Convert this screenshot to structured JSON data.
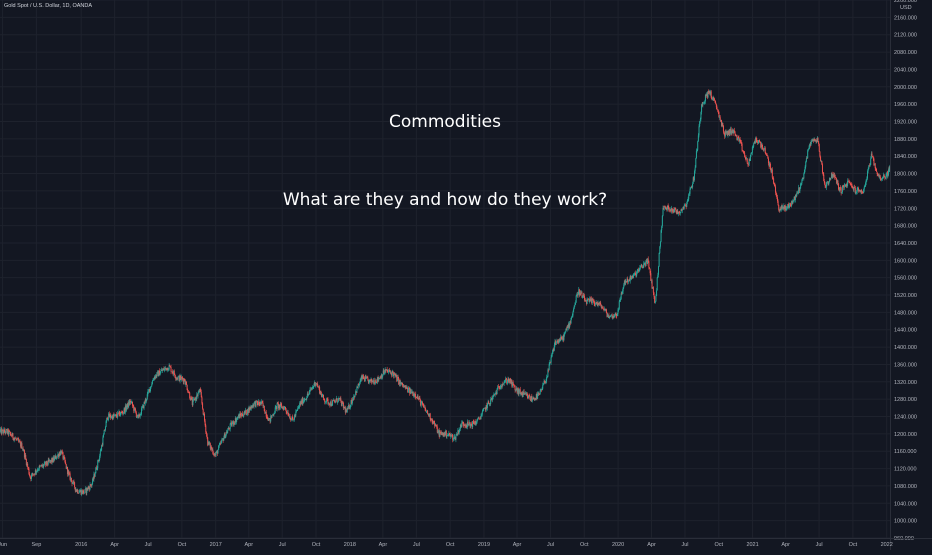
{
  "symbol_label": "Gold Spot / U.S. Dollar, 1D, OANDA",
  "overlay": {
    "title": "Commodities",
    "subtitle": "What are they and how do they work?"
  },
  "colors": {
    "background": "#131722",
    "grid": "#1e222d",
    "up": "#26a69a",
    "down": "#ef5350",
    "axis_text": "#b2b5be"
  },
  "chart_data": {
    "type": "candlestick",
    "title": "",
    "currency": "USD",
    "xlabel": "",
    "ylabel": "",
    "ylim": [
      960,
      2200
    ],
    "grid": true,
    "y_ticks": [
      960,
      1000,
      1040,
      1080,
      1120,
      1160,
      1200,
      1240,
      1280,
      1320,
      1360,
      1400,
      1440,
      1480,
      1520,
      1560,
      1600,
      1640,
      1680,
      1720,
      1760,
      1800,
      1840,
      1880,
      1920,
      1960,
      2000,
      2040,
      2080,
      2120,
      2160,
      2200
    ],
    "x_ticks": [
      {
        "label": "Jun",
        "date": "2015-06-01"
      },
      {
        "label": "Sep",
        "date": "2015-09-01"
      },
      {
        "label": "2016",
        "date": "2016-01-01"
      },
      {
        "label": "Apr",
        "date": "2016-04-01"
      },
      {
        "label": "Jul",
        "date": "2016-07-01"
      },
      {
        "label": "Oct",
        "date": "2016-10-01"
      },
      {
        "label": "2017",
        "date": "2017-01-01"
      },
      {
        "label": "Apr",
        "date": "2017-04-01"
      },
      {
        "label": "Jul",
        "date": "2017-07-01"
      },
      {
        "label": "Oct",
        "date": "2017-10-01"
      },
      {
        "label": "2018",
        "date": "2018-01-01"
      },
      {
        "label": "Apr",
        "date": "2018-04-01"
      },
      {
        "label": "Jul",
        "date": "2018-07-01"
      },
      {
        "label": "Oct",
        "date": "2018-10-01"
      },
      {
        "label": "2019",
        "date": "2019-01-01"
      },
      {
        "label": "Apr",
        "date": "2019-04-01"
      },
      {
        "label": "Jul",
        "date": "2019-07-01"
      },
      {
        "label": "Oct",
        "date": "2019-10-01"
      },
      {
        "label": "2020",
        "date": "2020-01-01"
      },
      {
        "label": "Apr",
        "date": "2020-04-01"
      },
      {
        "label": "Jul",
        "date": "2020-07-01"
      },
      {
        "label": "Oct",
        "date": "2020-10-01"
      },
      {
        "label": "2021",
        "date": "2021-01-01"
      },
      {
        "label": "Apr",
        "date": "2021-04-01"
      },
      {
        "label": "Jul",
        "date": "2021-07-01"
      },
      {
        "label": "Oct",
        "date": "2021-10-01"
      },
      {
        "label": "2022",
        "date": "2022-01-01"
      }
    ],
    "x_range": [
      "2015-05-25",
      "2022-01-10"
    ],
    "series": [
      {
        "dates": [
          "2015-05-25",
          "2015-06-15",
          "2015-07-06",
          "2015-07-27",
          "2015-08-17",
          "2015-09-07",
          "2015-09-28",
          "2015-10-19",
          "2015-11-09",
          "2015-11-30",
          "2015-12-21",
          "2016-01-11",
          "2016-02-01",
          "2016-02-22",
          "2016-03-14",
          "2016-04-04",
          "2016-04-25",
          "2016-05-16",
          "2016-06-06",
          "2016-06-27",
          "2016-07-18",
          "2016-08-08",
          "2016-08-29",
          "2016-09-19",
          "2016-10-10",
          "2016-10-31",
          "2016-11-21",
          "2016-12-12",
          "2017-01-02",
          "2017-01-23",
          "2017-02-13",
          "2017-03-06",
          "2017-03-27",
          "2017-04-17",
          "2017-05-08",
          "2017-05-29",
          "2017-06-19",
          "2017-07-10",
          "2017-07-31",
          "2017-08-21",
          "2017-09-11",
          "2017-10-02",
          "2017-10-23",
          "2017-11-13",
          "2017-12-04",
          "2017-12-25",
          "2018-01-15",
          "2018-02-05",
          "2018-02-26",
          "2018-03-19",
          "2018-04-09",
          "2018-04-30",
          "2018-05-21",
          "2018-06-11",
          "2018-07-02",
          "2018-07-23",
          "2018-08-13",
          "2018-09-03",
          "2018-09-24",
          "2018-10-15",
          "2018-11-05",
          "2018-11-26",
          "2018-12-17",
          "2019-01-07",
          "2019-01-28",
          "2019-02-18",
          "2019-03-11",
          "2019-04-01",
          "2019-04-22",
          "2019-05-13",
          "2019-06-03",
          "2019-06-24",
          "2019-07-15",
          "2019-08-05",
          "2019-08-26",
          "2019-09-16",
          "2019-10-07",
          "2019-10-28",
          "2019-11-18",
          "2019-12-09",
          "2019-12-30",
          "2020-01-20",
          "2020-02-10",
          "2020-03-02",
          "2020-03-23",
          "2020-04-13",
          "2020-05-04",
          "2020-05-25",
          "2020-06-15",
          "2020-07-06",
          "2020-07-27",
          "2020-08-17",
          "2020-09-07",
          "2020-09-28",
          "2020-10-19",
          "2020-11-09",
          "2020-11-30",
          "2020-12-21",
          "2021-01-11",
          "2021-02-01",
          "2021-02-22",
          "2021-03-15",
          "2021-04-05",
          "2021-04-26",
          "2021-05-17",
          "2021-06-07",
          "2021-06-28",
          "2021-07-19",
          "2021-08-09",
          "2021-08-30",
          "2021-09-20",
          "2021-10-11",
          "2021-11-01",
          "2021-11-22",
          "2021-12-13",
          "2022-01-03"
        ],
        "close": [
          1205,
          1190,
          1170,
          1100,
          1120,
          1130,
          1140,
          1160,
          1105,
          1070,
          1065,
          1085,
          1150,
          1240,
          1240,
          1250,
          1275,
          1235,
          1280,
          1330,
          1345,
          1355,
          1330,
          1325,
          1270,
          1300,
          1180,
          1150,
          1190,
          1220,
          1240,
          1250,
          1270,
          1270,
          1230,
          1265,
          1260,
          1230,
          1270,
          1290,
          1320,
          1280,
          1270,
          1280,
          1250,
          1290,
          1330,
          1320,
          1325,
          1345,
          1340,
          1315,
          1300,
          1290,
          1260,
          1235,
          1200,
          1200,
          1190,
          1225,
          1220,
          1230,
          1260,
          1285,
          1315,
          1325,
          1300,
          1290,
          1280,
          1290,
          1335,
          1410,
          1420,
          1460,
          1530,
          1505,
          1505,
          1495,
          1470,
          1475,
          1550,
          1560,
          1580,
          1600,
          1500,
          1720,
          1720,
          1710,
          1730,
          1790,
          1960,
          1990,
          1950,
          1890,
          1900,
          1870,
          1820,
          1880,
          1860,
          1810,
          1720,
          1720,
          1740,
          1780,
          1870,
          1880,
          1770,
          1800,
          1760,
          1780,
          1760,
          1760,
          1840,
          1790,
          1795,
          1815
        ]
      }
    ]
  }
}
